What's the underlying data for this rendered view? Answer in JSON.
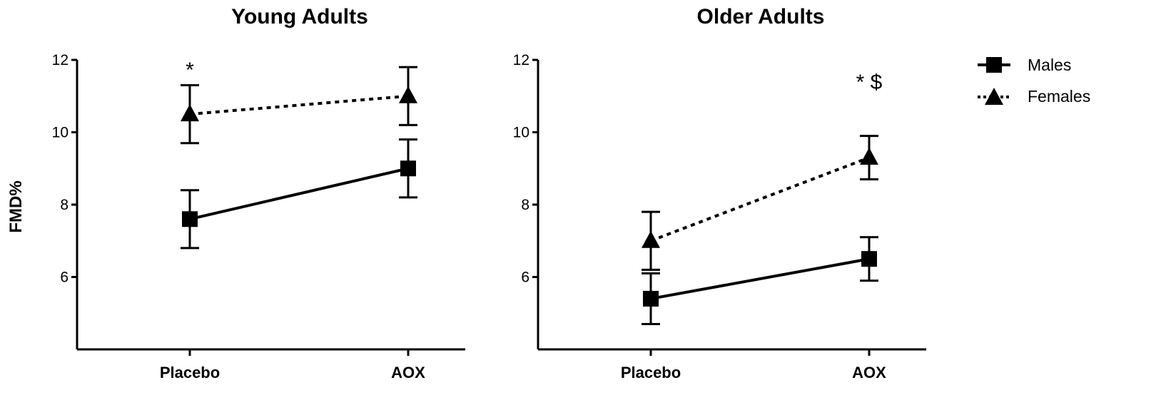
{
  "chart_data": [
    {
      "type": "line",
      "title": "Young Adults",
      "ylabel": "FMD%",
      "xlabel": "",
      "categories": [
        "Placebo",
        "AOX"
      ],
      "ylim": [
        4,
        12
      ],
      "yticks": [
        6,
        8,
        10,
        12
      ],
      "series": [
        {
          "name": "Males",
          "marker": "square",
          "line": "solid",
          "values": [
            7.6,
            9.0
          ],
          "error": [
            0.8,
            0.8
          ]
        },
        {
          "name": "Females",
          "marker": "triangle",
          "line": "dashed",
          "values": [
            10.5,
            11.0
          ],
          "error": [
            0.8,
            0.8
          ]
        }
      ],
      "annotations": [
        {
          "text": "*",
          "category": "Placebo",
          "y": 11.8
        }
      ]
    },
    {
      "type": "line",
      "title": "Older Adults",
      "ylabel": "",
      "xlabel": "",
      "categories": [
        "Placebo",
        "AOX"
      ],
      "ylim": [
        4,
        12
      ],
      "yticks": [
        6,
        8,
        10,
        12
      ],
      "series": [
        {
          "name": "Males",
          "marker": "square",
          "line": "solid",
          "values": [
            5.4,
            6.5
          ],
          "error": [
            0.7,
            0.6
          ]
        },
        {
          "name": "Females",
          "marker": "triangle",
          "line": "dashed",
          "values": [
            7.0,
            9.3
          ],
          "error": [
            0.8,
            0.6
          ]
        }
      ],
      "annotations": [
        {
          "text": "* $",
          "category": "AOX",
          "y": 11.3
        }
      ]
    }
  ],
  "legend": {
    "placement": "top-right",
    "items": [
      {
        "label": "Males",
        "marker": "square",
        "line": "solid"
      },
      {
        "label": "Females",
        "marker": "triangle",
        "line": "dashed"
      }
    ]
  },
  "colors": {
    "ink": "#000000",
    "background": "#ffffff"
  }
}
